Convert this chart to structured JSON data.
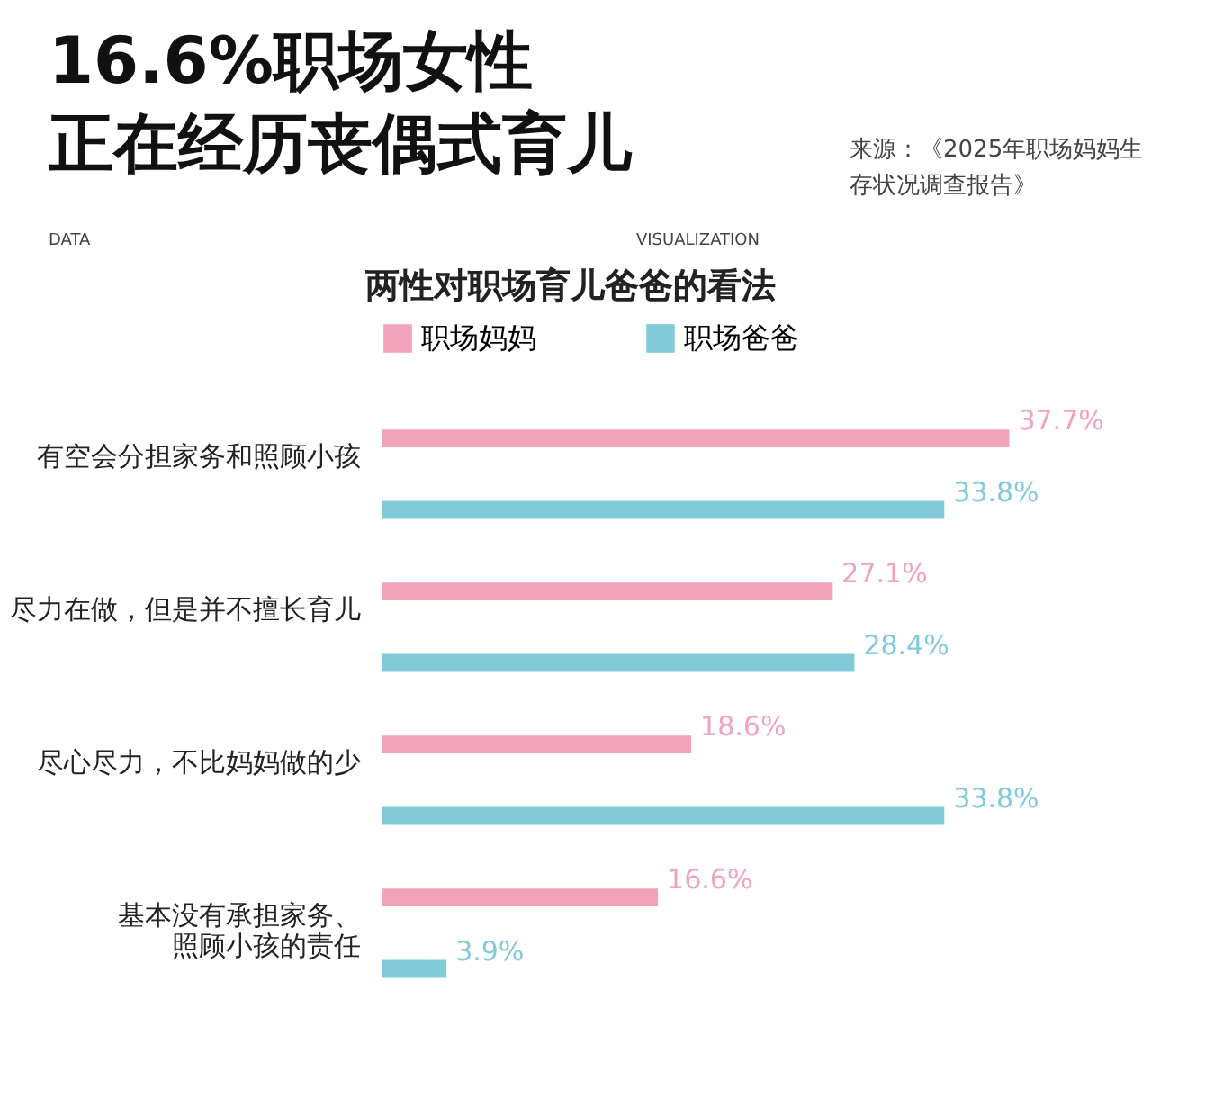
{
  "chart_data": {
    "type": "bar",
    "orientation": "horizontal",
    "title": "16.6%职场女性正在经历丧偶式育儿",
    "subtitle": "两性对职场育儿爸爸的看法",
    "annotations": [
      "来源：《2025年职场妈妈生存状况调查报告》",
      "DATA",
      "VISUALIZATION"
    ],
    "categories": [
      "有空会分担家务和照顾小孩",
      "尽力在做，但是并不擅长育儿",
      "尽心尽力，不比妈妈做的少",
      "基本没有承担家务、照顾小孩的责任"
    ],
    "series": [
      {
        "name": "职场妈妈",
        "color": "#f0a3bb",
        "values": [
          37.7,
          27.1,
          18.6,
          16.6
        ],
        "value_labels": [
          "37.7%",
          "27.1%",
          "18.6%",
          "16.6%"
        ]
      },
      {
        "name": "职场爸爸",
        "color": "#82cad8",
        "values": [
          33.8,
          28.4,
          33.8,
          3.9
        ],
        "value_labels": [
          "33.8%",
          "28.4%",
          "33.8%",
          "3.9%"
        ]
      }
    ],
    "legend": "top",
    "tick_labels": "y",
    "grid": false
  }
}
